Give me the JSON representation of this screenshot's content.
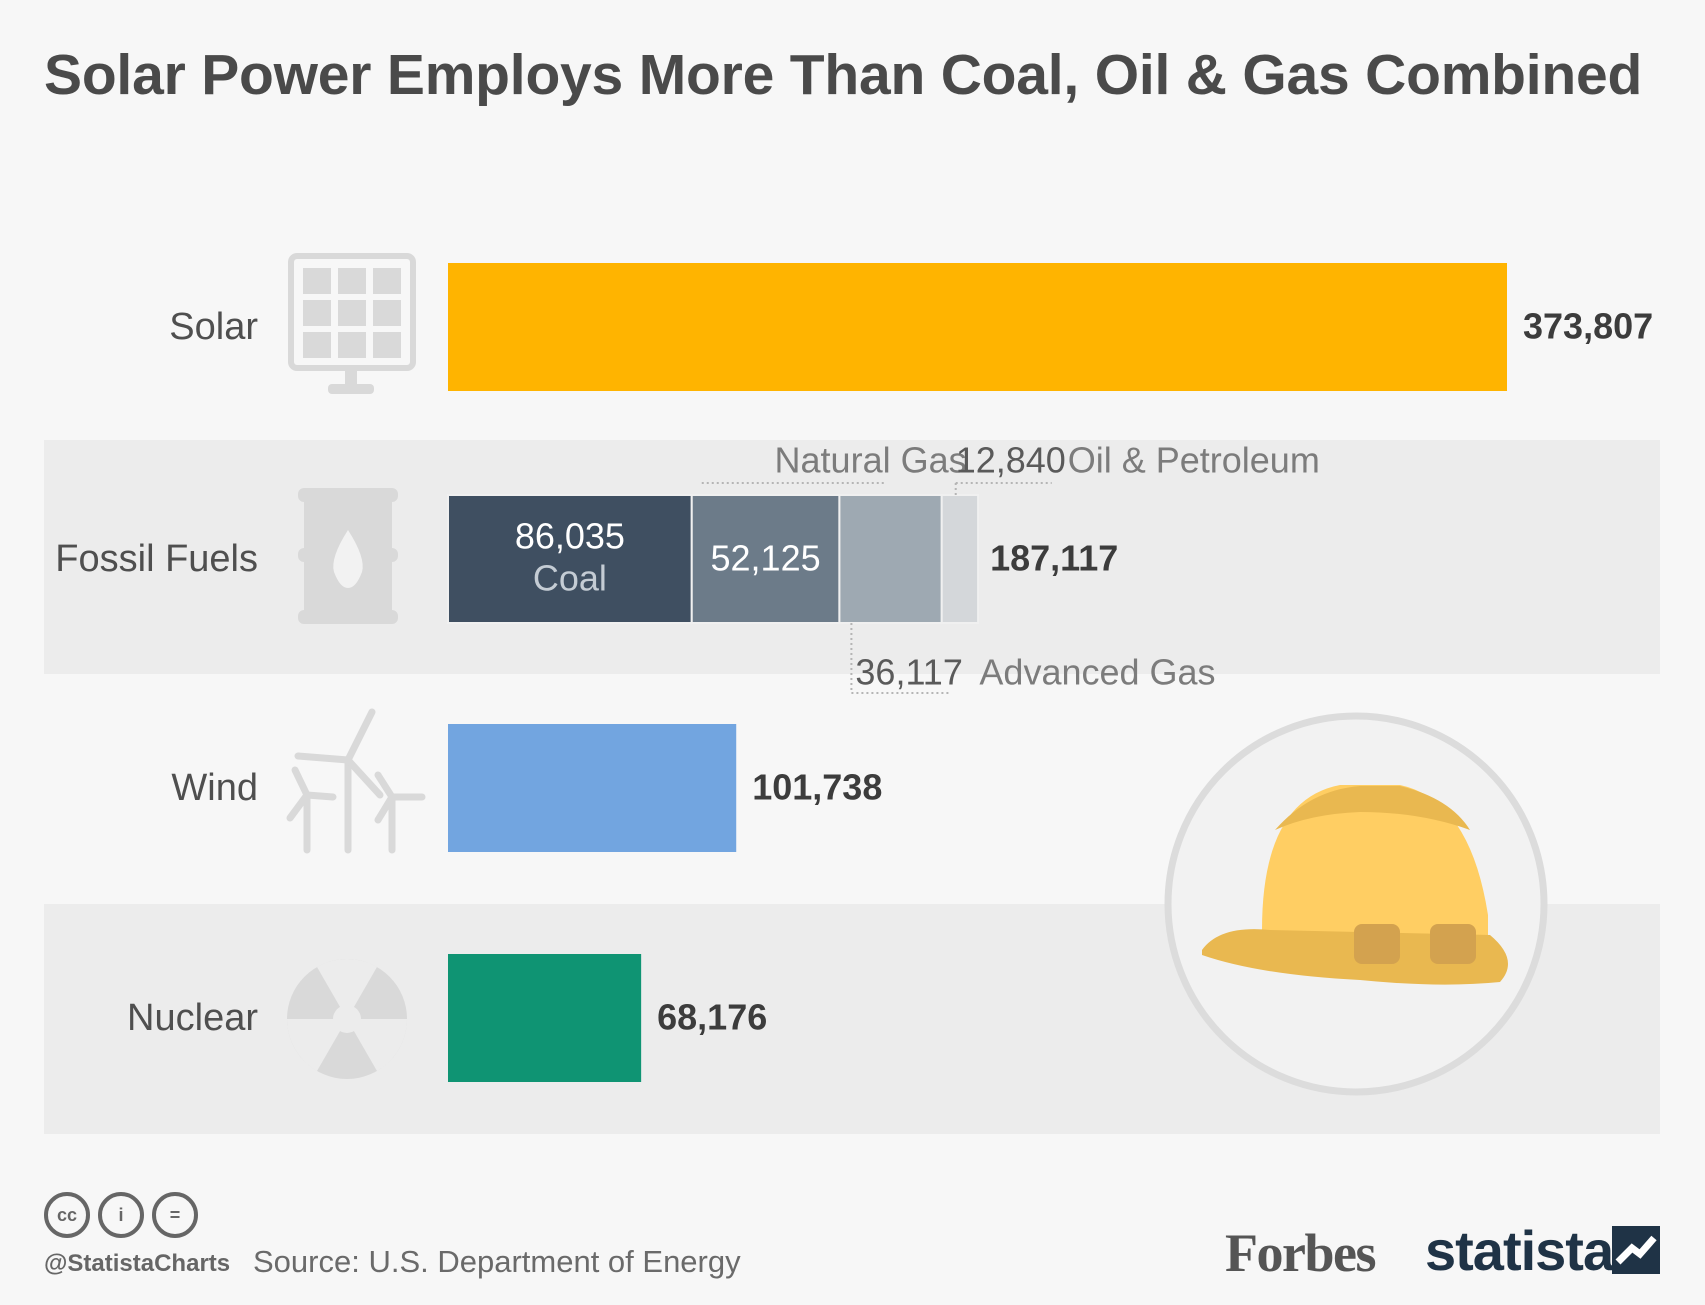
{
  "title": "Solar Power Employs More Than Coal, Oil & Gas Combined",
  "chart_data": {
    "type": "bar",
    "orientation": "horizontal",
    "categories": [
      "Solar",
      "Fossil Fuels",
      "Wind",
      "Nuclear"
    ],
    "values": [
      373807,
      187117,
      101738,
      68176
    ],
    "value_labels": [
      "373,807",
      "187,117",
      "101,738",
      "68,176"
    ],
    "colors": [
      "#ffb400",
      "#3f4f61",
      "#72a5e0",
      "#0f9473"
    ],
    "icons": [
      "solar-panel-icon",
      "oil-barrel-icon",
      "wind-turbine-icon",
      "radiation-icon"
    ],
    "fossil_breakdown": [
      {
        "name": "Coal",
        "value": 86035,
        "value_label": "86,035",
        "color": "#3f4f61"
      },
      {
        "name": "Natural Gas",
        "value": 52125,
        "value_label": "52,125",
        "color": "#6c7b89"
      },
      {
        "name": "Advanced Gas",
        "value": 36117,
        "value_label": "36,117",
        "color": "#9ea9b2"
      },
      {
        "name": "Oil & Petroleum",
        "value": 12840,
        "value_label": "12,840",
        "color": "#d4d7da"
      }
    ],
    "xlim": [
      0,
      373807
    ]
  },
  "decoration": {
    "icon": "hard-hat-icon"
  },
  "footer": {
    "handle": "@StatistaCharts",
    "source": "Source: U.S. Department of Energy",
    "forbes": "Forbes",
    "statista": "statista",
    "license_icons": [
      "cc-icon",
      "by-icon",
      "nd-icon"
    ]
  }
}
